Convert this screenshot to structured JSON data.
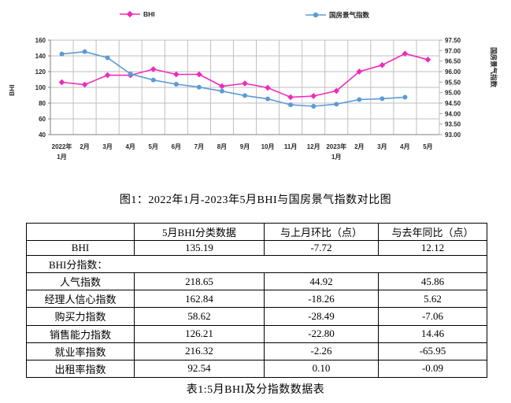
{
  "legend": [
    {
      "label": "BHI",
      "color": "#f02bb8",
      "marker": "diamond"
    },
    {
      "label": "国房景气指数",
      "color": "#5b9bd5",
      "marker": "circle"
    }
  ],
  "chart_data": {
    "type": "line",
    "categories": [
      "2022年\n1月",
      "2月",
      "3月",
      "4月",
      "5月",
      "6月",
      "7月",
      "8月",
      "9月",
      "10月",
      "11月",
      "12月",
      "2023年\n1月",
      "2月",
      "3月",
      "4月",
      "5月"
    ],
    "series": [
      {
        "name": "BHI",
        "axis": "left",
        "color": "#f02bb8",
        "marker": "diamond",
        "values": [
          106.5,
          103.5,
          115.5,
          115.4,
          123.07,
          116.5,
          116.5,
          101.5,
          105.0,
          99.5,
          87.5,
          89.0,
          95.5,
          120.0,
          128.3,
          142.91,
          135.19
        ]
      },
      {
        "name": "国房景气指数",
        "axis": "right",
        "color": "#5b9bd5",
        "marker": "circle",
        "values": [
          96.84,
          96.95,
          96.66,
          95.89,
          95.6,
          95.4,
          95.26,
          95.07,
          94.86,
          94.7,
          94.42,
          94.35,
          94.45,
          94.67,
          94.71,
          94.78,
          null
        ]
      }
    ],
    "left_axis": {
      "title": "BHI",
      "min": 40,
      "max": 160,
      "step": 20,
      "ticks": [
        "160",
        "140",
        "120",
        "100",
        "80",
        "60",
        "40"
      ]
    },
    "right_axis": {
      "title": "国房景气指数",
      "min": 93,
      "max": 97.5,
      "step": 0.5,
      "ticks": [
        "97.50",
        "97.00",
        "96.50",
        "96.00",
        "95.50",
        "95.00",
        "94.50",
        "94.00",
        "93.50",
        "93.00"
      ]
    },
    "grid": true,
    "legend_position": "top"
  },
  "figure_caption": "图1：2022年1月-2023年5月BHI与国房景气指数对比图",
  "table": {
    "headers": [
      "",
      "5月BHI分类数据",
      "与上月环比（点）",
      "与去年同比（点）"
    ],
    "rows": [
      {
        "label": "BHI",
        "values": [
          "135.19",
          "-7.72",
          "12.12"
        ]
      },
      {
        "label": "BHI分指数：",
        "span": true
      },
      {
        "label": "人气指数",
        "values": [
          "218.65",
          "44.92",
          "45.86"
        ]
      },
      {
        "label": "经理人信心指数",
        "values": [
          "162.84",
          "-18.26",
          "5.62"
        ]
      },
      {
        "label": "购买力指数",
        "values": [
          "58.62",
          "-28.49",
          "-7.06"
        ]
      },
      {
        "label": "销售能力指数",
        "values": [
          "126.21",
          "-22.80",
          "14.46"
        ]
      },
      {
        "label": "就业率指数",
        "values": [
          "216.32",
          "-2.26",
          "-65.95"
        ]
      },
      {
        "label": "出租率指数",
        "values": [
          "92.54",
          "0.10",
          "-0.09"
        ]
      }
    ]
  },
  "table_caption": "表1:5月BHI及分指数数据表"
}
